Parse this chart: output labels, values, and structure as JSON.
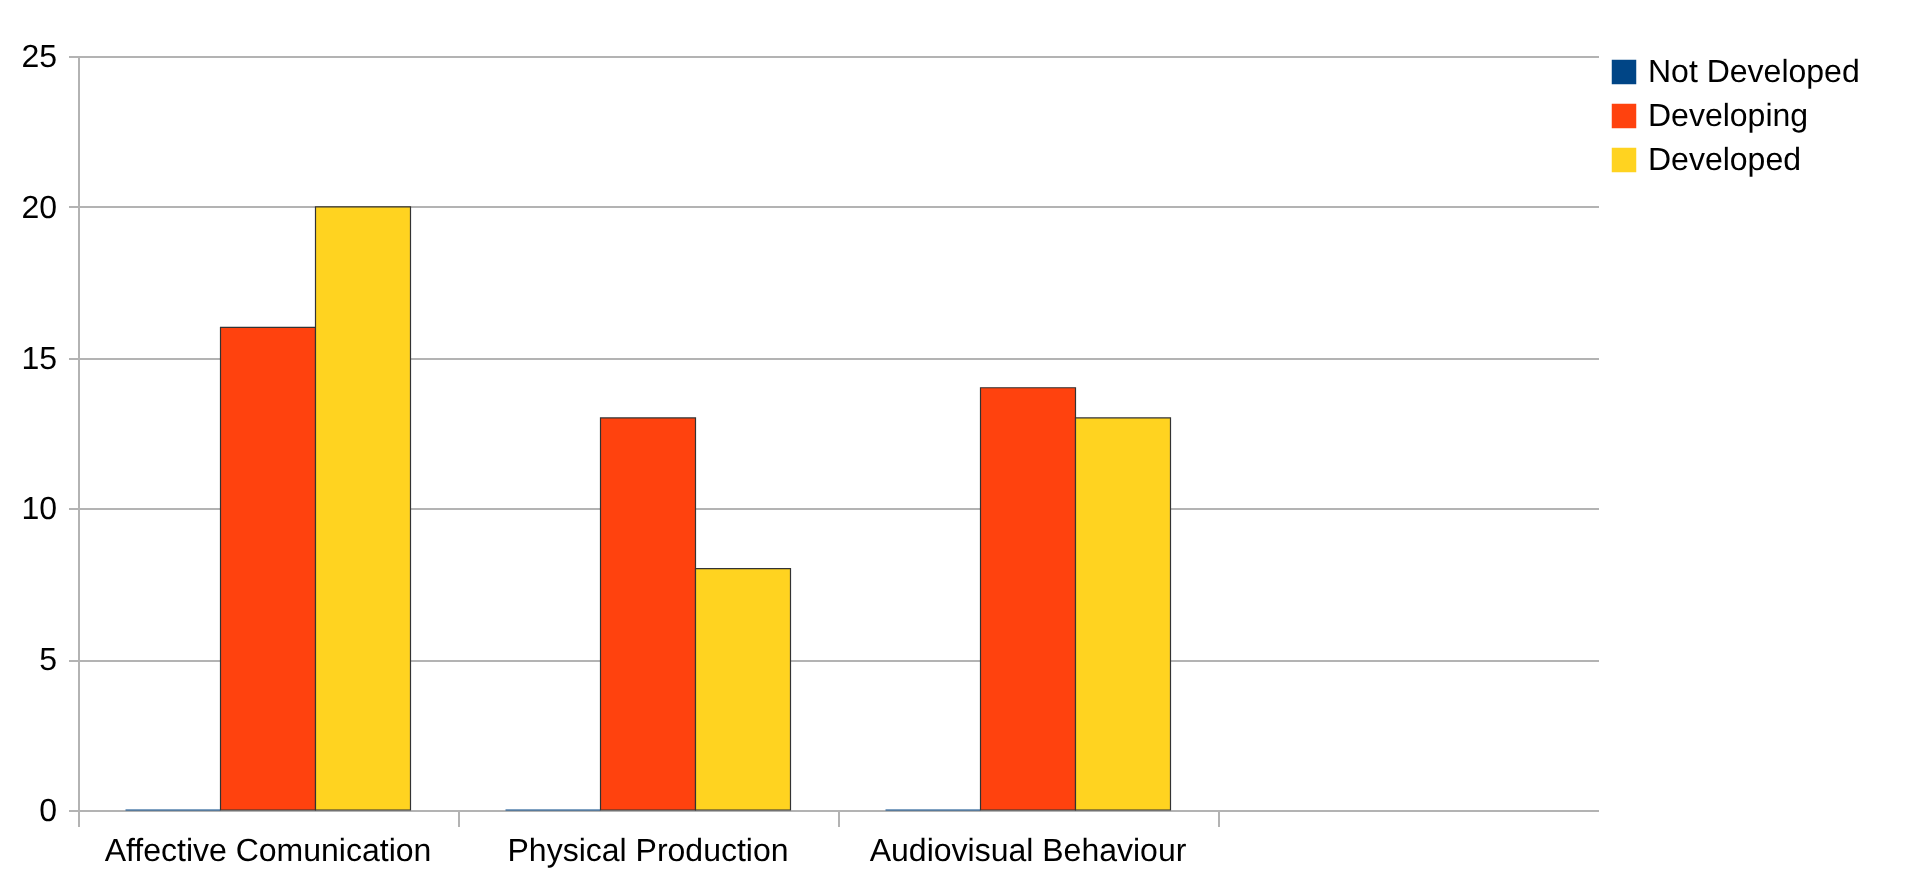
{
  "chart_data": {
    "type": "bar",
    "categories": [
      "Affective Comunication",
      "Physical Production",
      "Audiovisual Behaviour",
      null
    ],
    "series": [
      {
        "name": "Not Developed",
        "color": "#004586",
        "values": [
          0,
          0,
          0,
          null
        ]
      },
      {
        "name": "Developing",
        "color": "#ff420e",
        "values": [
          16,
          13,
          14,
          null
        ]
      },
      {
        "name": "Developed",
        "color": "#ffd320",
        "values": [
          20,
          8,
          13,
          null
        ]
      }
    ],
    "ylim": [
      0,
      25
    ],
    "yticks": [
      0,
      5,
      10,
      15,
      20,
      25
    ],
    "grid": "y",
    "legend": "right"
  }
}
